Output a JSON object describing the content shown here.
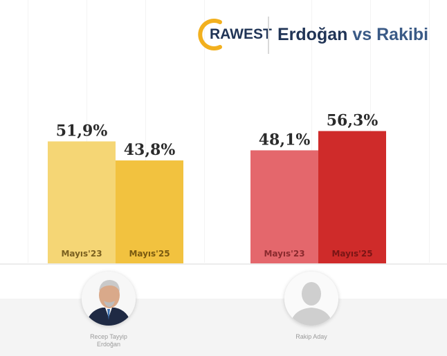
{
  "header": {
    "brand": "RAWEST",
    "title_part1": "Erdoğan",
    "title_part2": " vs Rakibi"
  },
  "colors": {
    "erdogan_2023": "#f5d675",
    "erdogan_2025": "#f2c23f",
    "rival_2023": "#e4676c",
    "rival_2025": "#cf2b2a",
    "navy": "#203456"
  },
  "chart_data": {
    "type": "bar",
    "title": "Erdoğan vs Rakibi",
    "xlabel": "",
    "ylabel": "",
    "ylim": [
      0,
      60
    ],
    "grid": false,
    "groups": [
      {
        "candidate": "Recep Tayyip Erdoğan",
        "bars": [
          {
            "category": "Mayıs'23",
            "value": 51.9,
            "label": "51,9%",
            "color": "#f5d675",
            "label_color": "#7a6020"
          },
          {
            "category": "Mayıs'25",
            "value": 43.8,
            "label": "43,8%",
            "color": "#f2c23f",
            "label_color": "#7a5a10"
          }
        ]
      },
      {
        "candidate": "Rakip Aday",
        "bars": [
          {
            "category": "Mayıs'23",
            "value": 48.1,
            "label": "48,1%",
            "color": "#e4676c",
            "label_color": "#8a2a2e"
          },
          {
            "category": "Mayıs'25",
            "value": 56.3,
            "label": "56,3%",
            "color": "#cf2b2a",
            "label_color": "#7a1515"
          }
        ]
      }
    ]
  },
  "candidates": [
    {
      "name_line1": "Recep Tayyip",
      "name_line2": "Erdoğan",
      "icon": "person-photo-icon"
    },
    {
      "name_line1": "Rakip Aday",
      "name_line2": "",
      "icon": "person-silhouette-icon"
    }
  ]
}
